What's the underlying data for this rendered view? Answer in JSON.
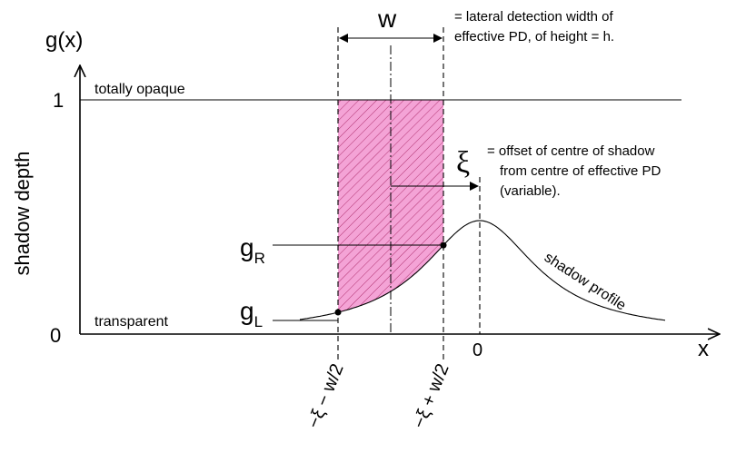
{
  "axis": {
    "y_label": "g(x)",
    "x_label": "x",
    "y_title": "shadow depth",
    "y_one": "1",
    "y_zero": "0",
    "x_zero": "0"
  },
  "levels": {
    "opaque": "totally opaque",
    "transparent": "transparent"
  },
  "width": {
    "symbol": "w",
    "definition": [
      "= lateral detection width of",
      "effective PD, of height = h."
    ]
  },
  "offset": {
    "symbol": "ξ",
    "definition": [
      "= offset of centre of shadow",
      "from centre of effective PD",
      "(variable)."
    ]
  },
  "points": {
    "right": {
      "base": "g",
      "sub": "R"
    },
    "left": {
      "base": "g",
      "sub": "L"
    }
  },
  "curve_label": "shadow profile",
  "bounds": [
    "−ξ − w/2",
    "−ξ + w/2"
  ]
}
